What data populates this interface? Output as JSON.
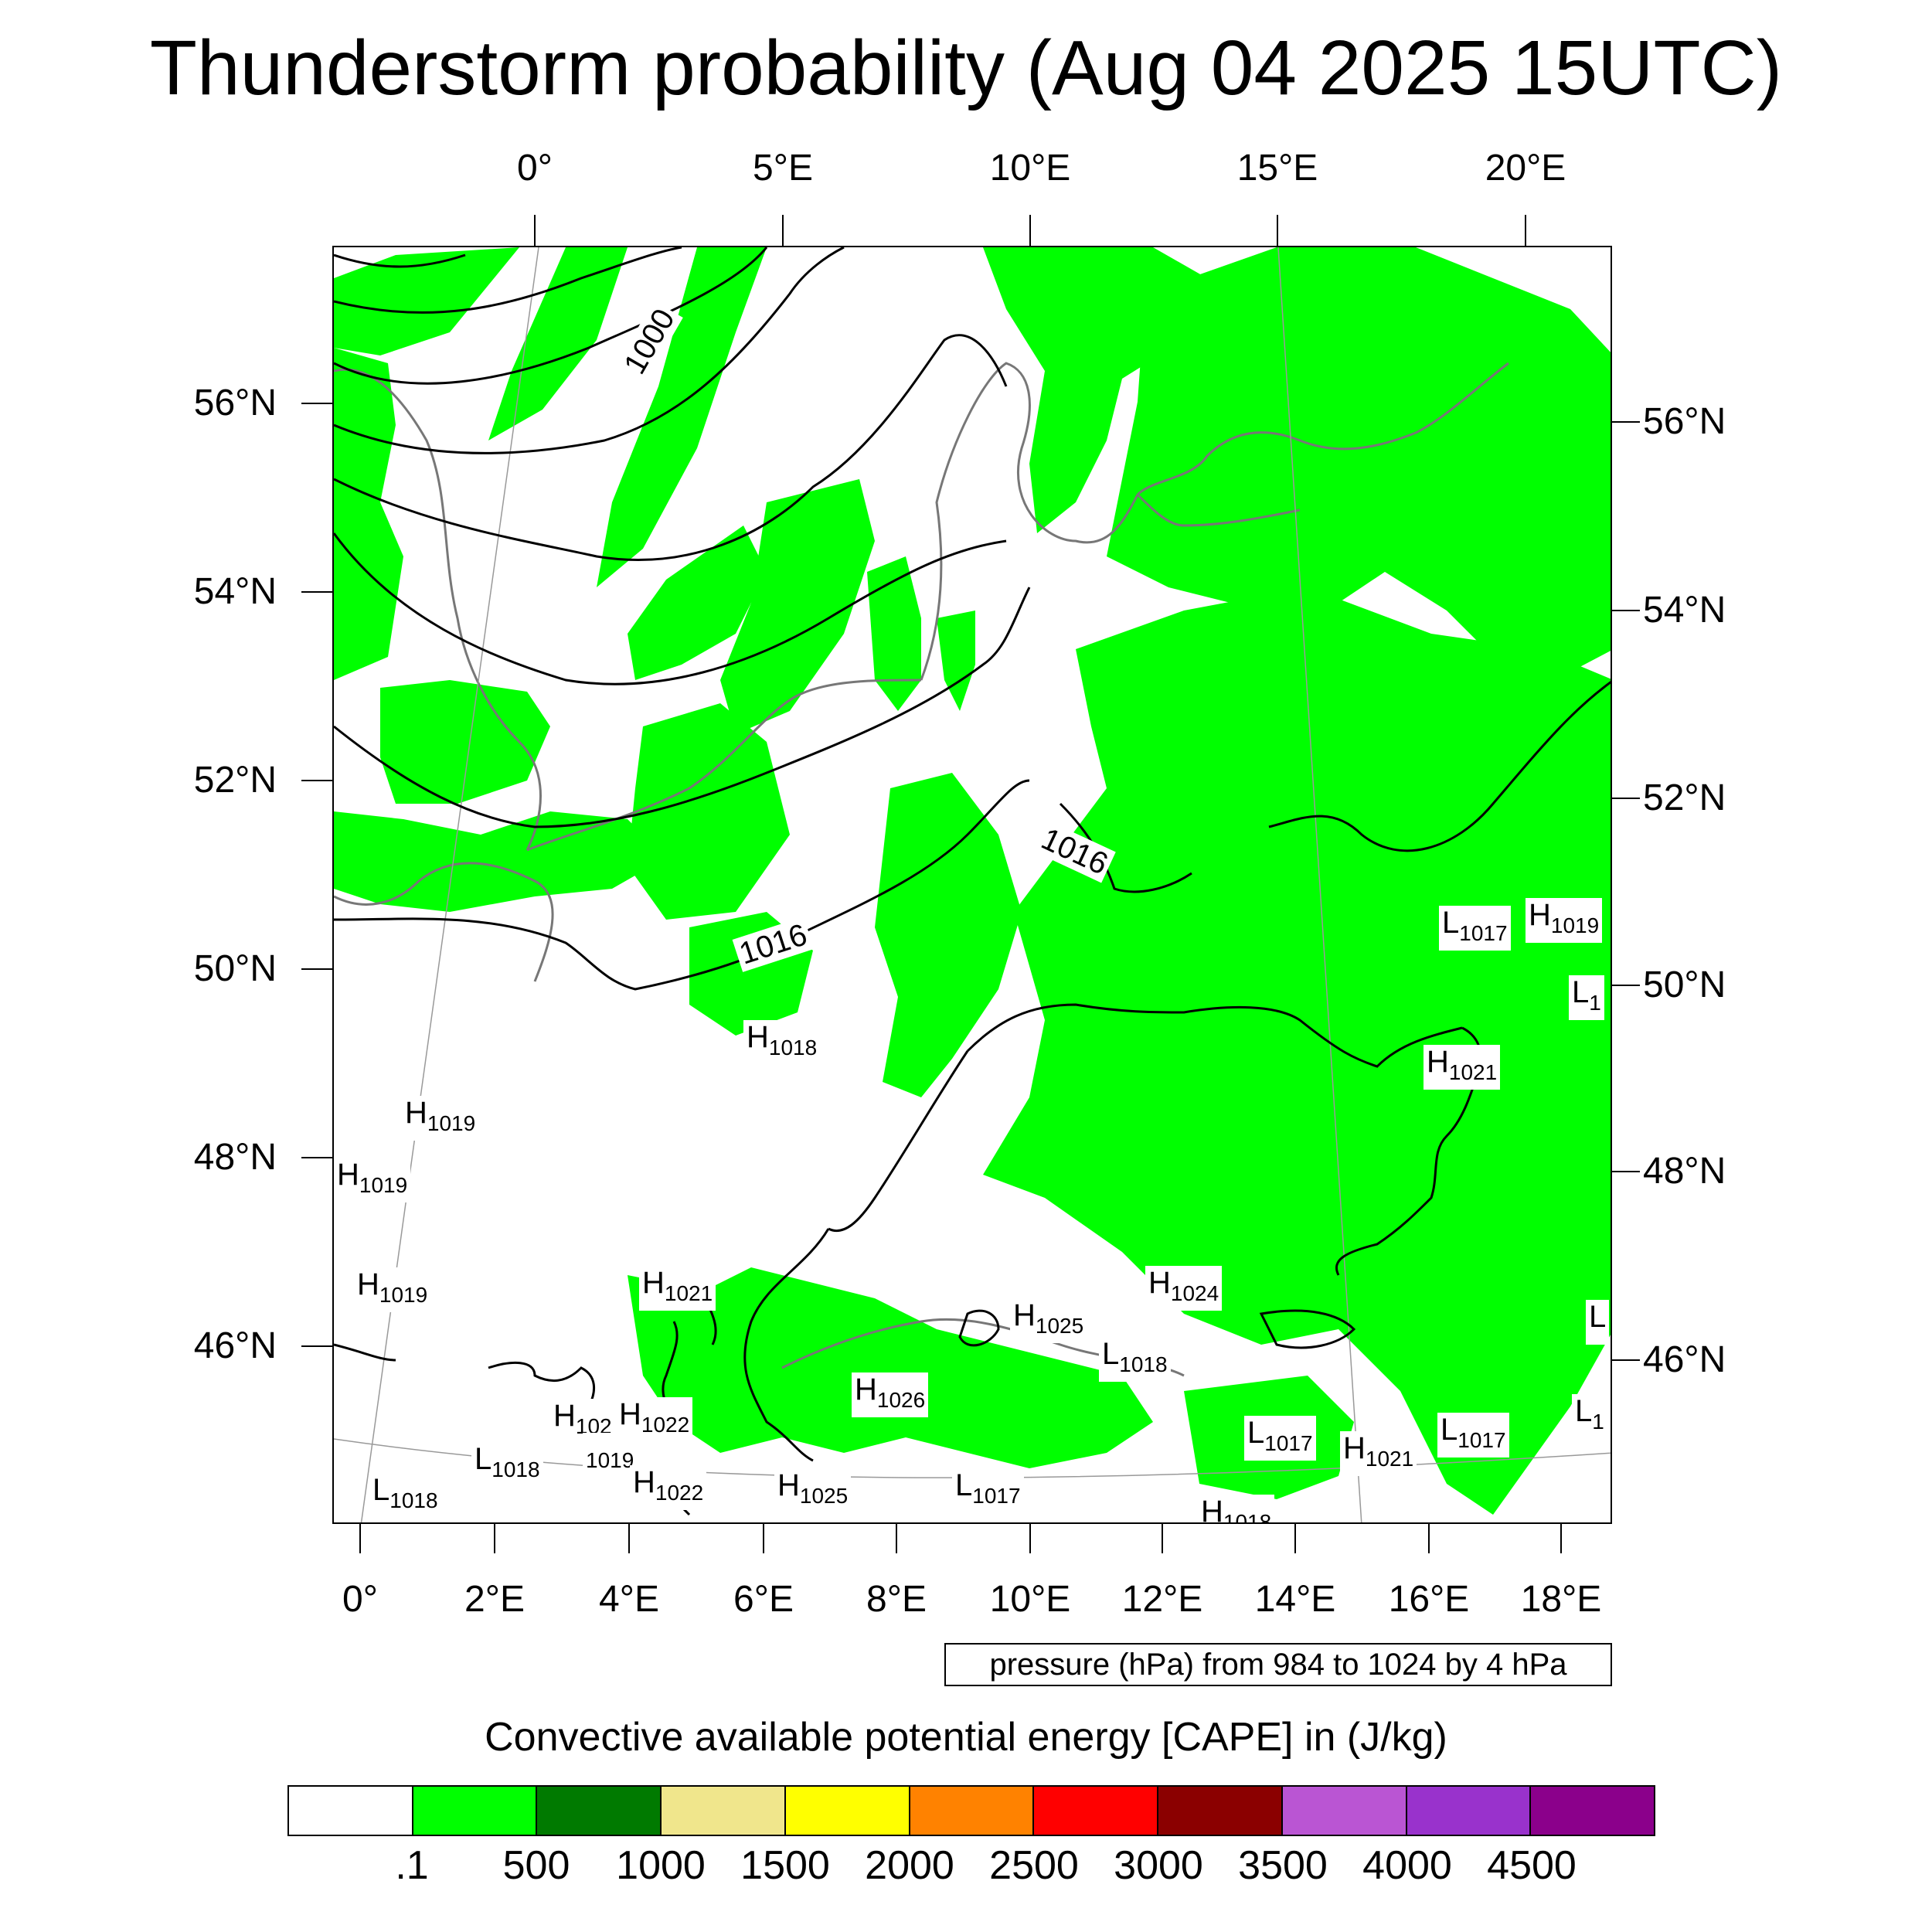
{
  "title": "Thunderstorm probability (Aug 04 2025 15UTC)",
  "top_axis_labels": [
    "0°",
    "5°E",
    "10°E",
    "15°E",
    "20°E"
  ],
  "bottom_axis_labels": [
    "0°",
    "2°E",
    "4°E",
    "6°E",
    "8°E",
    "10°E",
    "12°E",
    "14°E",
    "16°E",
    "18°E"
  ],
  "left_axis_labels": [
    "56°N",
    "54°N",
    "52°N",
    "50°N",
    "48°N",
    "46°N"
  ],
  "right_axis_labels": [
    "56°N",
    "54°N",
    "52°N",
    "50°N",
    "48°N",
    "46°N"
  ],
  "isobar_labels": [
    "1000",
    "1016",
    "1016"
  ],
  "pressure_centers": [
    {
      "kind": "L",
      "value": "1017"
    },
    {
      "kind": "H",
      "value": "1019"
    },
    {
      "kind": "L",
      "value": "1"
    },
    {
      "kind": "H",
      "value": "1018"
    },
    {
      "kind": "H",
      "value": "1021"
    },
    {
      "kind": "H",
      "value": "1019"
    },
    {
      "kind": "H",
      "value": "1019"
    },
    {
      "kind": "H",
      "value": "1019"
    },
    {
      "kind": "H",
      "value": "1021"
    },
    {
      "kind": "H",
      "value": "1024"
    },
    {
      "kind": "H",
      "value": "1025"
    },
    {
      "kind": "L",
      "value": "1018"
    },
    {
      "kind": "L",
      "value": ""
    },
    {
      "kind": "H",
      "value": "1026"
    },
    {
      "kind": "H",
      "value": "102"
    },
    {
      "kind": "H",
      "value": "1022"
    },
    {
      "kind": "",
      "value": "1019"
    },
    {
      "kind": "L",
      "value": "1018"
    },
    {
      "kind": "H",
      "value": "1022"
    },
    {
      "kind": "H",
      "value": "1025"
    },
    {
      "kind": "L",
      "value": "1017"
    },
    {
      "kind": "L",
      "value": "1017"
    },
    {
      "kind": "H",
      "value": "1021"
    },
    {
      "kind": "L",
      "value": "1017"
    },
    {
      "kind": "L",
      "value": "1"
    },
    {
      "kind": "L",
      "value": "1018"
    },
    {
      "kind": "H",
      "value": "1018"
    }
  ],
  "contour_note": "pressure (hPa) from 984 to 1024 by 4 hPa",
  "legend": {
    "title": "Convective available potential energy [CAPE] in (J/kg)",
    "colors": [
      "#ffffff",
      "#00ff00",
      "#007a00",
      "#f0e68c",
      "#ffff00",
      "#ff8200",
      "#ff0000",
      "#8b0000",
      "#ba55d3",
      "#9932cc",
      "#8b008b"
    ],
    "tick_labels": [
      ".1",
      "500",
      "1000",
      "1500",
      "2000",
      "2500",
      "3000",
      "3500",
      "4000",
      "4500"
    ]
  }
}
